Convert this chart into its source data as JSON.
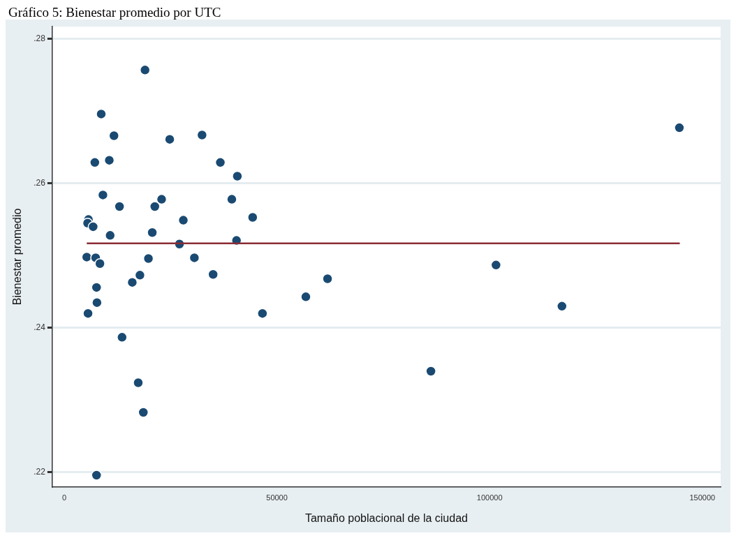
{
  "chart_data": {
    "type": "scatter",
    "title": "Gráfico 5: Bienestar promedio por UTC",
    "xlabel": "Tamaño poblacional de la ciudad",
    "ylabel": "Bienestar promedio",
    "xlim": [
      -2800,
      154300
    ],
    "ylim": [
      0.218,
      0.2817
    ],
    "xticks": [
      0,
      50000,
      100000,
      150000
    ],
    "yticks": [
      {
        "value": 0.22,
        "label": ".22"
      },
      {
        "value": 0.24,
        "label": ".24"
      },
      {
        "value": 0.26,
        "label": ".26"
      },
      {
        "value": 0.28,
        "label": ".28"
      }
    ],
    "grid": "y",
    "legend": false,
    "series": [
      {
        "marker": "circle",
        "color": "#1a4a72",
        "x": [
          19000,
          8700,
          11700,
          7200,
          10600,
          24800,
          32400,
          36700,
          40700,
          9100,
          13000,
          22900,
          21300,
          39400,
          5700,
          5500,
          6800,
          10800,
          28000,
          44300,
          20700,
          27100,
          40500,
          5300,
          7400,
          8400,
          19800,
          30600,
          17800,
          16000,
          35000,
          7600,
          7700,
          5600,
          46600,
          56800,
          61900,
          13600,
          101500,
          117000,
          144600,
          86200,
          17400,
          18600,
          7600
        ],
        "values": [
          0.2757,
          0.2696,
          0.2666,
          0.2629,
          0.2632,
          0.2661,
          0.2667,
          0.2629,
          0.261,
          0.2584,
          0.2568,
          0.2578,
          0.2568,
          0.2578,
          0.255,
          0.2545,
          0.254,
          0.2528,
          0.2549,
          0.2553,
          0.2532,
          0.2516,
          0.2521,
          0.2498,
          0.2497,
          0.2489,
          0.2496,
          0.2497,
          0.2473,
          0.2463,
          0.2474,
          0.2456,
          0.2435,
          0.242,
          0.242,
          0.2443,
          0.2468,
          0.2387,
          0.2487,
          0.243,
          0.2677,
          0.234,
          0.2324,
          0.2283,
          0.2196
        ]
      },
      {
        "type": "line",
        "color": "#8b2c35",
        "x": [
          5300,
          144700
        ],
        "values": [
          0.2517,
          0.2517
        ]
      }
    ]
  }
}
